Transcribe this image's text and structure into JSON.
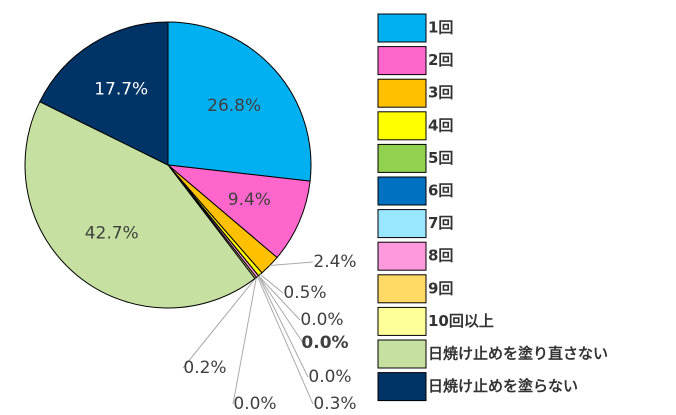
{
  "chart_data": {
    "type": "pie",
    "categories": [
      "1回",
      "2回",
      "3回",
      "4回",
      "5回",
      "6回",
      "7回",
      "8回",
      "9回",
      "10回以上",
      "日焼け止めを塗り直さない",
      "日焼け止めを塗らない"
    ],
    "values": [
      26.8,
      9.4,
      2.4,
      0.5,
      0.0,
      0.0,
      0.0,
      0.3,
      0.0,
      0.2,
      42.7,
      17.7
    ],
    "value_labels": [
      "26.8%",
      "9.4%",
      "2.4%",
      "0.5%",
      "0.0%",
      "0.0%",
      "0.0%",
      "0.3%",
      "0.0%",
      "0.2%",
      "42.7%",
      "17.7%"
    ],
    "colors": [
      "#00b0f0",
      "#ff66cc",
      "#ffc000",
      "#ffff00",
      "#92d050",
      "#0070c0",
      "#99e6ff",
      "#ff99dd",
      "#ffd966",
      "#ffff99",
      "#c5e0a0",
      "#003366"
    ]
  }
}
